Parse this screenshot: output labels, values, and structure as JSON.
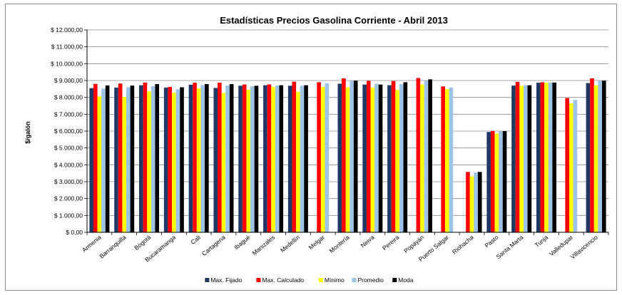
{
  "chart_data": {
    "type": "bar",
    "title": "Estadísticas Precios Gasolina Corriente - Abril 2013",
    "xlabel": "",
    "ylabel": "$/galón",
    "ylim": [
      0,
      12000
    ],
    "yticks": [
      0,
      1000,
      2000,
      3000,
      4000,
      5000,
      6000,
      7000,
      8000,
      9000,
      10000,
      11000,
      12000
    ],
    "ytick_labels": [
      "$ 0,00",
      "$ 1.000,00",
      "$ 2.000,00",
      "$ 3.000,00",
      "$ 4.000,00",
      "$ 5.000,00",
      "$ 6.000,00",
      "$ 7.000,00",
      "$ 8.000,00",
      "$ 9.000,00",
      "$ 10.000,00",
      "$ 11.000,00",
      "$ 12.000,00"
    ],
    "grid": true,
    "legend_position": "bottom",
    "categories": [
      "Armenia",
      "Barranquilla",
      "Bogotá",
      "Bucaramanga",
      "Cali",
      "Cartagena",
      "Ibagué",
      "Manizales",
      "Medellín",
      "Melgar",
      "Montería",
      "Neiva",
      "Pereira",
      "Popayán",
      "Puerto Salgar",
      "Riohacha",
      "Pasto",
      "Santa Marta",
      "Tunja",
      "Valledupar",
      "Villavicencio"
    ],
    "series": [
      {
        "name": "Max. Fijado",
        "color": "#1f3864",
        "values": [
          8550,
          8580,
          8720,
          8580,
          8750,
          8560,
          8690,
          8720,
          8690,
          null,
          8810,
          8760,
          8720,
          null,
          null,
          null,
          5950,
          8700,
          8870,
          null,
          8850
        ]
      },
      {
        "name": "Max. Calculado",
        "color": "#ff0000",
        "values": [
          8800,
          8820,
          8880,
          8620,
          8870,
          8870,
          8760,
          8770,
          8930,
          8900,
          9130,
          8980,
          8970,
          9150,
          8650,
          3580,
          6010,
          8920,
          8900,
          7960,
          9130
        ]
      },
      {
        "name": "Mínimo",
        "color": "#ffff00",
        "values": [
          8060,
          8030,
          8350,
          8280,
          8540,
          8260,
          8450,
          8620,
          8330,
          8610,
          8580,
          8580,
          8440,
          8760,
          8490,
          3320,
          5860,
          8680,
          8870,
          7650,
          8720
        ]
      },
      {
        "name": "Promedio",
        "color": "#9dc3e6",
        "values": [
          8520,
          8600,
          8660,
          8480,
          8730,
          8700,
          8660,
          8700,
          8690,
          8840,
          8970,
          8810,
          8780,
          8980,
          8580,
          3550,
          5980,
          8720,
          8880,
          7850,
          8980
        ]
      },
      {
        "name": "Moda",
        "color": "#000000",
        "values": [
          8710,
          8700,
          8790,
          8600,
          8790,
          8790,
          8690,
          8720,
          8720,
          null,
          8990,
          8760,
          8900,
          9070,
          null,
          3580,
          6000,
          8720,
          8880,
          null,
          8990
        ]
      }
    ]
  }
}
